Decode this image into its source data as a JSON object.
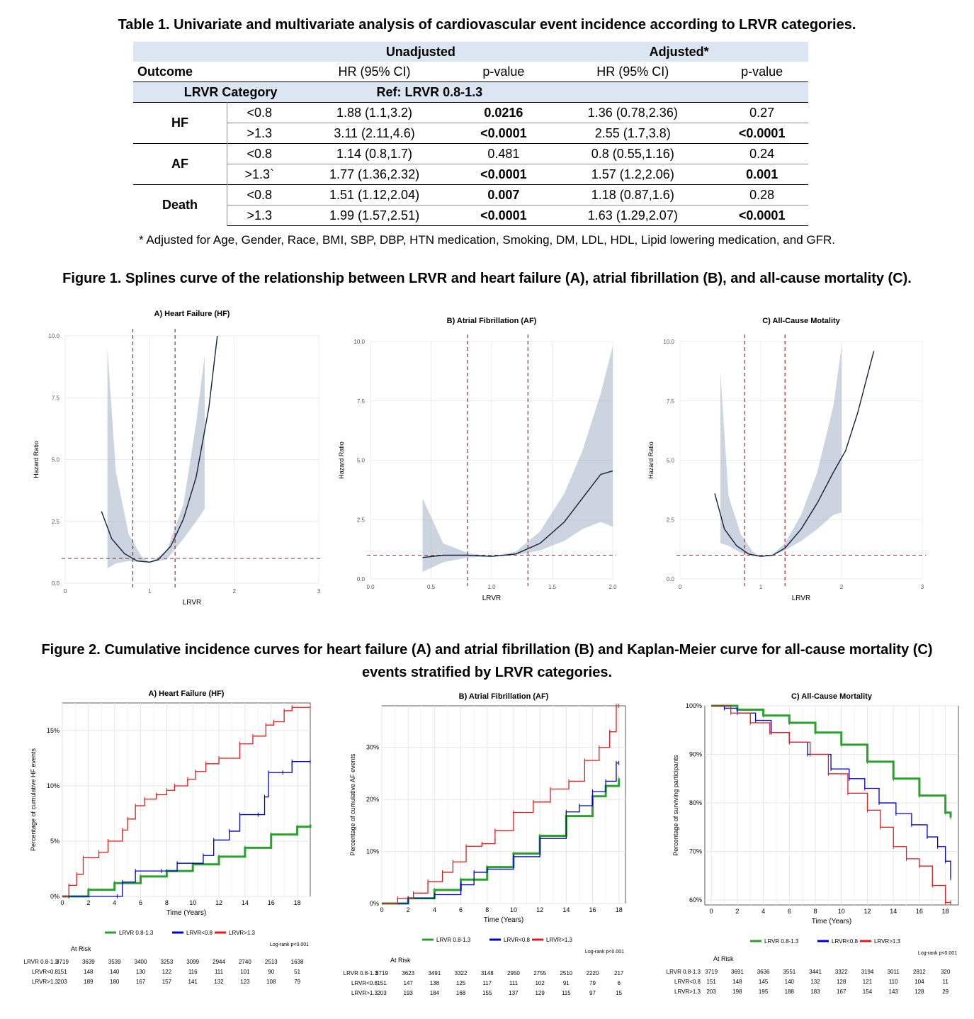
{
  "table1": {
    "title": "Table 1. Univariate and multivariate analysis of cardiovascular event incidence according to LRVR categories.",
    "group_headers": [
      "Unadjusted",
      "Adjusted*"
    ],
    "col_headers": [
      "Outcome",
      "HR (95% CI)",
      "p-value",
      "HR (95% CI)",
      "p-value"
    ],
    "category_label": "LRVR Category",
    "ref_label": "Ref: LRVR 0.8-1.3",
    "rows": [
      {
        "outcome": "HF",
        "category": "<0.8",
        "hr_u": "1.88 (1.1,3.2)",
        "p_u": "0.0216",
        "p_u_bold": true,
        "hr_a": "1.36 (0.78,2.36)",
        "p_a": "0.27",
        "p_a_bold": false
      },
      {
        "outcome": "",
        "category": ">1.3",
        "hr_u": "3.11 (2.11,4.6)",
        "p_u": "<0.0001",
        "p_u_bold": true,
        "hr_a": "2.55 (1.7,3.8)",
        "p_a": "<0.0001",
        "p_a_bold": true
      },
      {
        "outcome": "AF",
        "category": "<0.8",
        "hr_u": "1.14 (0.8,1.7)",
        "p_u": "0.481",
        "p_u_bold": false,
        "hr_a": "0.8 (0.55,1.16)",
        "p_a": "0.24",
        "p_a_bold": false
      },
      {
        "outcome": "",
        "category": ">1.3`",
        "hr_u": "1.77 (1.36,2.32)",
        "p_u": "<0.0001",
        "p_u_bold": true,
        "hr_a": "1.57 (1.2,2.06)",
        "p_a": "0.001",
        "p_a_bold": true
      },
      {
        "outcome": "Death",
        "category": "<0.8",
        "hr_u": "1.51 (1.12,2.04)",
        "p_u": "0.007",
        "p_u_bold": true,
        "hr_a": "1.18 (0.87,1.6)",
        "p_a": "0.28",
        "p_a_bold": false
      },
      {
        "outcome": "",
        "category": ">1.3",
        "hr_u": "1.99 (1.57,2.51)",
        "p_u": "<0.0001",
        "p_u_bold": true,
        "hr_a": "1.63 (1.29,2.07)",
        "p_a": "<0.0001",
        "p_a_bold": true
      }
    ],
    "footnote": "* Adjusted for Age, Gender, Race, BMI, SBP, DBP, HTN medication, Smoking, DM, LDL, HDL, Lipid lowering medication, and GFR."
  },
  "figure1_title": "Figure 1. Splines curve of the relationship between LRVR and heart failure (A), atrial fibrillation (B), and all-cause mortality (C).",
  "figure2_title_line1": "Figure 2. Cumulative incidence curves for heart failure (A) and atrial fibrillation (B) and Kaplan-Meier curve for all-cause mortality (C)",
  "figure2_title_line2": "events stratified by LRVR categories.",
  "chart_data": [
    {
      "id": "f1a",
      "type": "line",
      "title": "A) Heart Failure (HF)",
      "xlabel": "LRVR",
      "ylabel": "Hazard Ratio",
      "xlim": [
        0,
        3
      ],
      "ylim": [
        0,
        10
      ],
      "xticks": [
        "0",
        "1",
        "2",
        "3"
      ],
      "yticks": [
        "0.0",
        "2.5",
        "5.0",
        "7.5",
        "10.0"
      ],
      "vlines": [
        0.8,
        1.3
      ],
      "hline": 1,
      "x": [
        0.43,
        0.55,
        0.7,
        0.85,
        1.0,
        1.1,
        1.25,
        1.4,
        1.55,
        1.7,
        1.8
      ],
      "y": [
        2.9,
        1.8,
        1.2,
        0.9,
        0.85,
        0.95,
        1.5,
        2.6,
        4.3,
        7.1,
        10.0
      ],
      "ci_x": [
        0.5,
        0.6,
        0.75,
        0.9,
        1.0,
        1.2,
        1.4,
        1.55,
        1.65
      ],
      "ci_lo": [
        0.6,
        0.8,
        0.9,
        0.85,
        0.85,
        0.95,
        1.8,
        2.5,
        3.0
      ],
      "ci_hi": [
        9.5,
        4.5,
        2.0,
        1.1,
        0.85,
        1.3,
        3.2,
        6.5,
        9.2
      ]
    },
    {
      "id": "f1b",
      "type": "line",
      "title": "B) Atrial Fibrillation (AF)",
      "xlabel": "LRVR",
      "ylabel": "Hazard Ratio",
      "xlim": [
        0,
        2
      ],
      "ylim": [
        0,
        10
      ],
      "xticks": [
        "0.0",
        "0.5",
        "1.0",
        "1.5",
        "2.0"
      ],
      "yticks": [
        "0.0",
        "2.5",
        "5.0",
        "7.5",
        "10.0"
      ],
      "vlines": [
        0.8,
        1.3
      ],
      "hline": 1,
      "x": [
        0.43,
        0.6,
        0.8,
        1.0,
        1.2,
        1.4,
        1.6,
        1.75,
        1.9,
        2.0
      ],
      "y": [
        0.9,
        1.0,
        1.0,
        0.95,
        1.05,
        1.5,
        2.4,
        3.4,
        4.4,
        4.55
      ],
      "ci_x": [
        0.43,
        0.6,
        0.8,
        1.0,
        1.2,
        1.4,
        1.6,
        1.75,
        1.9,
        2.0
      ],
      "ci_lo": [
        0.3,
        0.7,
        0.9,
        0.95,
        1.0,
        1.2,
        1.6,
        2.1,
        2.4,
        2.2
      ],
      "ci_hi": [
        3.4,
        1.5,
        1.1,
        0.95,
        1.15,
        2.0,
        3.6,
        5.4,
        7.8,
        9.8
      ]
    },
    {
      "id": "f1c",
      "type": "line",
      "title": "C) All-Cause Motality",
      "xlabel": "LRVR",
      "ylabel": "Hazard Ratio",
      "xlim": [
        0,
        3
      ],
      "ylim": [
        0,
        10
      ],
      "xticks": [
        "0",
        "1",
        "2",
        "3"
      ],
      "yticks": [
        "0.0",
        "2.5",
        "5.0",
        "7.5",
        "10.0"
      ],
      "vlines": [
        0.8,
        1.3
      ],
      "hline": 1,
      "x": [
        0.43,
        0.55,
        0.7,
        0.85,
        1.0,
        1.15,
        1.3,
        1.5,
        1.7,
        1.9,
        2.05,
        2.2,
        2.4
      ],
      "y": [
        3.6,
        2.1,
        1.4,
        1.05,
        0.95,
        1.0,
        1.3,
        2.1,
        3.2,
        4.5,
        5.4,
        7.0,
        9.6
      ],
      "ci_x": [
        0.5,
        0.6,
        0.75,
        0.9,
        1.0,
        1.15,
        1.3,
        1.5,
        1.7,
        1.9,
        2.0
      ],
      "ci_lo": [
        1.5,
        1.4,
        1.1,
        0.95,
        0.95,
        1.0,
        1.2,
        1.6,
        2.1,
        2.7,
        2.8
      ],
      "ci_hi": [
        8.7,
        3.5,
        1.9,
        1.15,
        0.95,
        1.05,
        1.5,
        2.7,
        4.5,
        7.3,
        9.8
      ]
    },
    {
      "id": "f2a",
      "type": "line",
      "title": "A) Heart Failure (HF)",
      "xlabel": "Time (Years)",
      "ylabel": "Percentage of cumulative HF events",
      "xlim": [
        0,
        19
      ],
      "ylim": [
        0,
        17.5
      ],
      "xticks": [
        "0",
        "2",
        "4",
        "6",
        "8",
        "10",
        "12",
        "14",
        "16",
        "18"
      ],
      "yticks": [
        "0%",
        "5%",
        "10%",
        "15%"
      ],
      "ytick_values": [
        0,
        5,
        10,
        15
      ],
      "series": [
        {
          "name": "LRVR 0.8-1.3",
          "color": "#2ca02c",
          "x": [
            0,
            2,
            4,
            6,
            8,
            10,
            12,
            14,
            16,
            18,
            19
          ],
          "y": [
            0,
            0.6,
            1.2,
            1.8,
            2.3,
            2.9,
            3.6,
            4.4,
            5.6,
            6.3,
            6.5
          ]
        },
        {
          "name": "LRVR<0.8",
          "color": "#0000c8",
          "x": [
            0,
            0.5,
            4.2,
            4.6,
            5.6,
            7.6,
            8.8,
            10.8,
            11.6,
            12.8,
            13.6,
            15.0,
            15.5,
            15.8,
            16.9,
            17.6,
            19
          ],
          "y": [
            0,
            0,
            0,
            1.3,
            2.3,
            2.3,
            3.0,
            3.7,
            5.1,
            5.9,
            7.4,
            7.4,
            9.0,
            11.2,
            11.2,
            12.2,
            12.2
          ]
        },
        {
          "name": "LRVR>1.3",
          "color": "#e41a1c",
          "x": [
            0,
            0.5,
            1.1,
            1.6,
            2.8,
            3.5,
            4.6,
            5.0,
            5.6,
            6.3,
            7.2,
            8.0,
            8.6,
            9.6,
            10.2,
            11.0,
            12.0,
            13.6,
            14.6,
            15.6,
            16.2,
            17.0,
            17.6,
            19
          ],
          "y": [
            0,
            1.0,
            2.0,
            3.5,
            4.0,
            5.0,
            6.0,
            7.0,
            8.2,
            8.8,
            9.2,
            9.6,
            10.0,
            10.6,
            11.3,
            12.0,
            12.5,
            13.8,
            14.5,
            15.5,
            15.8,
            16.8,
            17.1,
            17.1
          ]
        }
      ],
      "risk_header": "At Risk",
      "risk_labels": [
        "LRVR 0.8-1.3",
        "LRVR<0.8",
        "LRVR>1.3"
      ],
      "risk_rows": [
        [
          "3719",
          "3639",
          "3539",
          "3400",
          "3253",
          "3099",
          "2944",
          "2740",
          "2513",
          "1638"
        ],
        [
          "151",
          "148",
          "140",
          "130",
          "122",
          "116",
          "111",
          "101",
          "90",
          "51"
        ],
        [
          "203",
          "189",
          "180",
          "167",
          "157",
          "141",
          "132",
          "123",
          "108",
          "79"
        ]
      ],
      "legend": [
        "LRVR 0.8-1.3",
        "LRVR<0.8",
        "LRVR>1.3"
      ],
      "logrank": "Log-rank p<0.001"
    },
    {
      "id": "f2b",
      "type": "line",
      "title": "B) Atrial Fibrillation (AF)",
      "xlabel": "Time (Years)",
      "ylabel": "Percentage of cumulative AF events",
      "xlim": [
        0,
        18.5
      ],
      "ylim": [
        0,
        38
      ],
      "xticks": [
        "0",
        "2",
        "4",
        "6",
        "8",
        "10",
        "12",
        "14",
        "16",
        "18"
      ],
      "yticks": [
        "0%",
        "10%",
        "20%",
        "30%"
      ],
      "ytick_values": [
        0,
        10,
        20,
        30
      ],
      "series": [
        {
          "name": "LRVR 0.8-1.3",
          "color": "#2ca02c",
          "x": [
            0,
            2,
            4,
            6,
            8,
            10,
            12,
            14,
            16,
            17,
            18
          ],
          "y": [
            0,
            1.0,
            2.6,
            4.6,
            7.0,
            9.6,
            13.0,
            16.8,
            20.6,
            22.6,
            24.0
          ]
        },
        {
          "name": "LRVR<0.8",
          "color": "#0000c8",
          "x": [
            0,
            2,
            4,
            6,
            7,
            8,
            10,
            12,
            14,
            15,
            16,
            17,
            17.8,
            18
          ],
          "y": [
            0,
            1.0,
            1.7,
            3.6,
            6.0,
            6.6,
            9.0,
            12.5,
            17.6,
            18.8,
            21.5,
            23.5,
            27.0,
            27.0
          ]
        },
        {
          "name": "LRVR>1.3",
          "color": "#e41a1c",
          "x": [
            0,
            1.2,
            2.4,
            3.5,
            4.6,
            5.4,
            6.4,
            7.6,
            8.6,
            10,
            11.5,
            12.8,
            14.2,
            15.4,
            16.5,
            17.3,
            17.8,
            18
          ],
          "y": [
            0,
            1.0,
            2.0,
            4.2,
            6.0,
            8.0,
            11.0,
            11.5,
            14.0,
            17.5,
            19.5,
            22.0,
            23.5,
            27.5,
            30.0,
            33.0,
            38.0,
            38.0
          ]
        }
      ],
      "risk_header": "At Risk",
      "risk_labels": [
        "LRVR 0.8-1.3",
        "LRVR<0.8",
        "LRVR>1.3"
      ],
      "risk_rows": [
        [
          "3719",
          "3623",
          "3491",
          "3322",
          "3148",
          "2950",
          "2755",
          "2510",
          "2220",
          "217"
        ],
        [
          "151",
          "147",
          "138",
          "125",
          "117",
          "111",
          "102",
          "91",
          "79",
          "6"
        ],
        [
          "203",
          "193",
          "184",
          "168",
          "155",
          "137",
          "129",
          "115",
          "97",
          "15"
        ]
      ],
      "legend": [
        "LRVR 0.8-1.3",
        "LRVR<0.8",
        "LRVR>1.3"
      ],
      "logrank": "Log-rank p<0.001"
    },
    {
      "id": "f2c",
      "type": "line",
      "title": "C) All-Cause Mortality",
      "xlabel": "Time (Years)",
      "ylabel": "Percentage of surviving participants",
      "xlim": [
        -0.5,
        19
      ],
      "ylim": [
        59,
        100
      ],
      "xticks": [
        "0",
        "2",
        "4",
        "6",
        "8",
        "10",
        "12",
        "14",
        "16",
        "18"
      ],
      "yticks": [
        "60%",
        "70%",
        "80%",
        "90%",
        "100%"
      ],
      "ytick_values": [
        60,
        70,
        80,
        90,
        100
      ],
      "series": [
        {
          "name": "LRVR 0.8-1.3",
          "color": "#2ca02c",
          "x": [
            0,
            2,
            4,
            6,
            8,
            10,
            12,
            14,
            16,
            18,
            18.4
          ],
          "y": [
            100,
            99.2,
            98,
            96.5,
            94.5,
            92,
            88.5,
            85,
            81.5,
            78,
            77
          ]
        },
        {
          "name": "LRVR<0.8",
          "color": "#0000c8",
          "x": [
            0,
            1,
            2,
            3.4,
            4.6,
            6,
            7.4,
            9.2,
            10.6,
            11.8,
            12.9,
            14.2,
            15.4,
            16.6,
            17.4,
            18.0,
            18.4
          ],
          "y": [
            100,
            99.5,
            98.5,
            97.0,
            94.5,
            92.5,
            90.0,
            87.0,
            85.0,
            83.0,
            80.0,
            77.8,
            75.5,
            73.0,
            71.0,
            68.0,
            64.5
          ]
        },
        {
          "name": "LRVR>1.3",
          "color": "#e41a1c",
          "x": [
            0,
            1.5,
            3,
            4.5,
            6,
            7.6,
            9,
            10.5,
            12,
            13,
            14,
            15,
            16,
            17,
            18,
            18.4
          ],
          "y": [
            100,
            98.5,
            96.5,
            94.5,
            92.5,
            90,
            86,
            82,
            78.5,
            75,
            71,
            68.5,
            67,
            63,
            59.5,
            59.5
          ]
        }
      ],
      "risk_header": "At Risk",
      "risk_labels": [
        "LRVR 0.8-1.3",
        "LRVR<0.8",
        "LRVR>1.3"
      ],
      "risk_rows": [
        [
          "3719",
          "3691",
          "3636",
          "3551",
          "3441",
          "3322",
          "3194",
          "3011",
          "2812",
          "320"
        ],
        [
          "151",
          "148",
          "145",
          "140",
          "132",
          "128",
          "121",
          "110",
          "104",
          "11"
        ],
        [
          "203",
          "198",
          "195",
          "188",
          "183",
          "167",
          "154",
          "143",
          "128",
          "29"
        ]
      ],
      "legend": [
        "LRVR 0.8-1.3",
        "LRVR<0.8",
        "LRVR>1.3"
      ],
      "logrank": "Log-rank p<0.001"
    }
  ]
}
